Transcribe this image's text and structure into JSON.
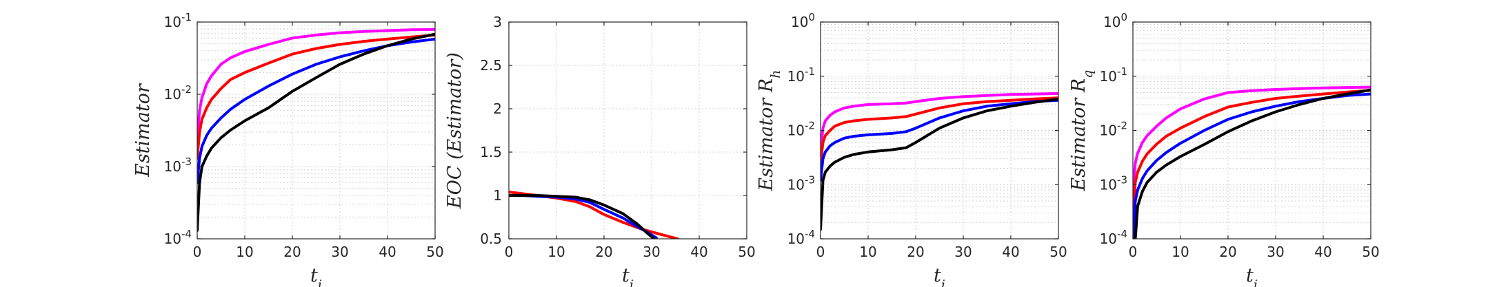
{
  "chart_data": [
    {
      "type": "line",
      "xlabel": "t_i",
      "ylabel": "Estimator",
      "yscale": "log",
      "xlim": [
        0,
        50
      ],
      "ylim": [
        0.0001,
        0.1
      ],
      "xticks": [
        "0",
        "10",
        "20",
        "30",
        "40",
        "50"
      ],
      "yticks": [
        {
          "base": "10",
          "exp": "-4"
        },
        {
          "base": "10",
          "exp": "-3"
        },
        {
          "base": "10",
          "exp": "-2"
        },
        {
          "base": "10",
          "exp": "-1"
        }
      ],
      "grid": true,
      "series": [
        {
          "color": "#ff00ff",
          "x": [
            0,
            0.5,
            1,
            2,
            3,
            5,
            7,
            10,
            15,
            20,
            25,
            30,
            35,
            40,
            45,
            50
          ],
          "y": [
            0.0025,
            0.006,
            0.009,
            0.014,
            0.018,
            0.026,
            0.032,
            0.039,
            0.049,
            0.06,
            0.066,
            0.071,
            0.074,
            0.076,
            0.078,
            0.079
          ]
        },
        {
          "color": "#ff0000",
          "x": [
            0,
            0.5,
            1,
            2,
            3,
            5,
            7,
            10,
            15,
            20,
            25,
            30,
            35,
            40,
            45,
            50
          ],
          "y": [
            0.0013,
            0.003,
            0.0045,
            0.0065,
            0.0085,
            0.012,
            0.016,
            0.02,
            0.027,
            0.036,
            0.043,
            0.049,
            0.054,
            0.058,
            0.062,
            0.066
          ]
        },
        {
          "color": "#0000ff",
          "x": [
            0,
            0.5,
            1,
            2,
            3,
            5,
            7,
            10,
            15,
            20,
            25,
            30,
            35,
            40,
            45,
            50
          ],
          "y": [
            0.0006,
            0.0013,
            0.0019,
            0.0027,
            0.0034,
            0.0047,
            0.0062,
            0.0085,
            0.013,
            0.019,
            0.026,
            0.033,
            0.04,
            0.047,
            0.053,
            0.058
          ]
        },
        {
          "color": "#000000",
          "x": [
            0,
            0.5,
            1,
            2,
            3,
            5,
            7,
            10,
            15,
            20,
            25,
            30,
            35,
            40,
            45,
            50
          ],
          "y": [
            0.00013,
            0.0006,
            0.001,
            0.0014,
            0.0018,
            0.0025,
            0.0032,
            0.0043,
            0.0065,
            0.011,
            0.017,
            0.026,
            0.036,
            0.047,
            0.058,
            0.068
          ]
        }
      ]
    },
    {
      "type": "line",
      "xlabel": "t_i",
      "ylabel": "EOC (Estimator)",
      "yscale": "linear",
      "xlim": [
        0,
        50
      ],
      "ylim": [
        0.5,
        3
      ],
      "xticks": [
        "0",
        "10",
        "20",
        "30",
        "40",
        "50"
      ],
      "yticks": [
        "0.5",
        "1",
        "1.5",
        "2",
        "2.5",
        "3"
      ],
      "ytick_values": [
        0.5,
        1,
        1.5,
        2,
        2.5,
        3
      ],
      "grid": true,
      "series": [
        {
          "color": "#ff0000",
          "x": [
            0,
            3,
            6,
            10,
            14,
            17,
            20,
            24,
            28,
            32,
            35.5
          ],
          "y": [
            1.04,
            1.02,
            1.0,
            0.97,
            0.93,
            0.87,
            0.78,
            0.69,
            0.61,
            0.55,
            0.5
          ]
        },
        {
          "color": "#0000ff",
          "x": [
            0,
            3,
            6,
            10,
            14,
            17,
            20,
            24,
            27,
            29,
            31
          ],
          "y": [
            1.0,
            1.0,
            0.99,
            0.98,
            0.96,
            0.92,
            0.84,
            0.74,
            0.64,
            0.58,
            0.51
          ]
        },
        {
          "color": "#000000",
          "x": [
            0,
            3,
            6,
            10,
            14,
            17,
            20,
            24,
            27,
            29,
            30.5
          ],
          "y": [
            1.0,
            1.0,
            1.0,
            0.99,
            0.98,
            0.95,
            0.89,
            0.79,
            0.67,
            0.57,
            0.5
          ]
        }
      ]
    },
    {
      "type": "line",
      "xlabel": "t_i",
      "ylabel": "Estimator R_h",
      "yscale": "log",
      "xlim": [
        0,
        50
      ],
      "ylim": [
        0.0001,
        1
      ],
      "xticks": [
        "0",
        "10",
        "20",
        "30",
        "40",
        "50"
      ],
      "yticks": [
        {
          "base": "10",
          "exp": "-4"
        },
        {
          "base": "10",
          "exp": "-3"
        },
        {
          "base": "10",
          "exp": "-2"
        },
        {
          "base": "10",
          "exp": "-1"
        },
        {
          "base": "10",
          "exp": "0"
        }
      ],
      "grid": true,
      "series": [
        {
          "color": "#ff00ff",
          "x": [
            0,
            0.5,
            1,
            2,
            3,
            5,
            7,
            10,
            15,
            18,
            20,
            25,
            30,
            35,
            40,
            45,
            50
          ],
          "y": [
            0.004,
            0.011,
            0.015,
            0.019,
            0.022,
            0.026,
            0.028,
            0.03,
            0.031,
            0.032,
            0.034,
            0.039,
            0.042,
            0.044,
            0.046,
            0.047,
            0.048
          ]
        },
        {
          "color": "#ff0000",
          "x": [
            0,
            0.5,
            1,
            2,
            3,
            5,
            7,
            10,
            15,
            18,
            20,
            25,
            30,
            35,
            40,
            45,
            50
          ],
          "y": [
            0.0025,
            0.006,
            0.008,
            0.01,
            0.012,
            0.014,
            0.015,
            0.016,
            0.017,
            0.018,
            0.02,
            0.026,
            0.031,
            0.034,
            0.036,
            0.038,
            0.04
          ]
        },
        {
          "color": "#0000ff",
          "x": [
            0,
            0.5,
            1,
            2,
            3,
            5,
            7,
            10,
            15,
            18,
            20,
            25,
            30,
            35,
            40,
            45,
            50
          ],
          "y": [
            0.0012,
            0.003,
            0.004,
            0.0052,
            0.006,
            0.0072,
            0.0078,
            0.0083,
            0.0088,
            0.0095,
            0.011,
            0.017,
            0.023,
            0.028,
            0.031,
            0.034,
            0.036
          ]
        },
        {
          "color": "#000000",
          "x": [
            0,
            0.5,
            1,
            2,
            3,
            5,
            7,
            10,
            15,
            18,
            20,
            25,
            30,
            35,
            40,
            45,
            50
          ],
          "y": [
            0.00015,
            0.0012,
            0.0017,
            0.0022,
            0.0026,
            0.0032,
            0.0036,
            0.004,
            0.0044,
            0.0048,
            0.006,
            0.011,
            0.017,
            0.023,
            0.028,
            0.033,
            0.038
          ]
        }
      ]
    },
    {
      "type": "line",
      "xlabel": "t_i",
      "ylabel": "Estimator R_q",
      "yscale": "log",
      "xlim": [
        0,
        50
      ],
      "ylim": [
        0.0001,
        1
      ],
      "xticks": [
        "0",
        "10",
        "20",
        "30",
        "40",
        "50"
      ],
      "yticks": [
        {
          "base": "10",
          "exp": "-4"
        },
        {
          "base": "10",
          "exp": "-3"
        },
        {
          "base": "10",
          "exp": "-2"
        },
        {
          "base": "10",
          "exp": "-1"
        },
        {
          "base": "10",
          "exp": "0"
        }
      ],
      "grid": true,
      "series": [
        {
          "color": "#ff00ff",
          "x": [
            0,
            0.5,
            1,
            2,
            3,
            5,
            7,
            10,
            15,
            20,
            25,
            30,
            35,
            40,
            45,
            50
          ],
          "y": [
            0.0008,
            0.0025,
            0.0038,
            0.006,
            0.008,
            0.012,
            0.017,
            0.025,
            0.038,
            0.05,
            0.054,
            0.057,
            0.059,
            0.061,
            0.062,
            0.063
          ]
        },
        {
          "color": "#ff0000",
          "x": [
            0,
            0.5,
            1,
            2,
            3,
            5,
            7,
            10,
            15,
            20,
            25,
            30,
            35,
            40,
            45,
            50
          ],
          "y": [
            0.0003,
            0.0011,
            0.0017,
            0.0027,
            0.0037,
            0.0056,
            0.0078,
            0.011,
            0.018,
            0.027,
            0.033,
            0.039,
            0.043,
            0.047,
            0.051,
            0.055
          ]
        },
        {
          "color": "#0000ff",
          "x": [
            0,
            0.5,
            1,
            2,
            3,
            5,
            7,
            10,
            15,
            20,
            25,
            30,
            35,
            40,
            45,
            50
          ],
          "y": [
            0.0001,
            0.0005,
            0.0008,
            0.0013,
            0.0018,
            0.0028,
            0.0039,
            0.0058,
            0.01,
            0.016,
            0.022,
            0.028,
            0.034,
            0.039,
            0.044,
            0.047
          ]
        },
        {
          "color": "#000000",
          "x": [
            0.5,
            1,
            2,
            3,
            5,
            7,
            10,
            15,
            20,
            25,
            30,
            35,
            40,
            45,
            50
          ],
          "y": [
            0.0001,
            0.0004,
            0.00075,
            0.0011,
            0.0017,
            0.0023,
            0.0033,
            0.0055,
            0.0095,
            0.015,
            0.022,
            0.03,
            0.039,
            0.047,
            0.056
          ]
        }
      ]
    }
  ]
}
